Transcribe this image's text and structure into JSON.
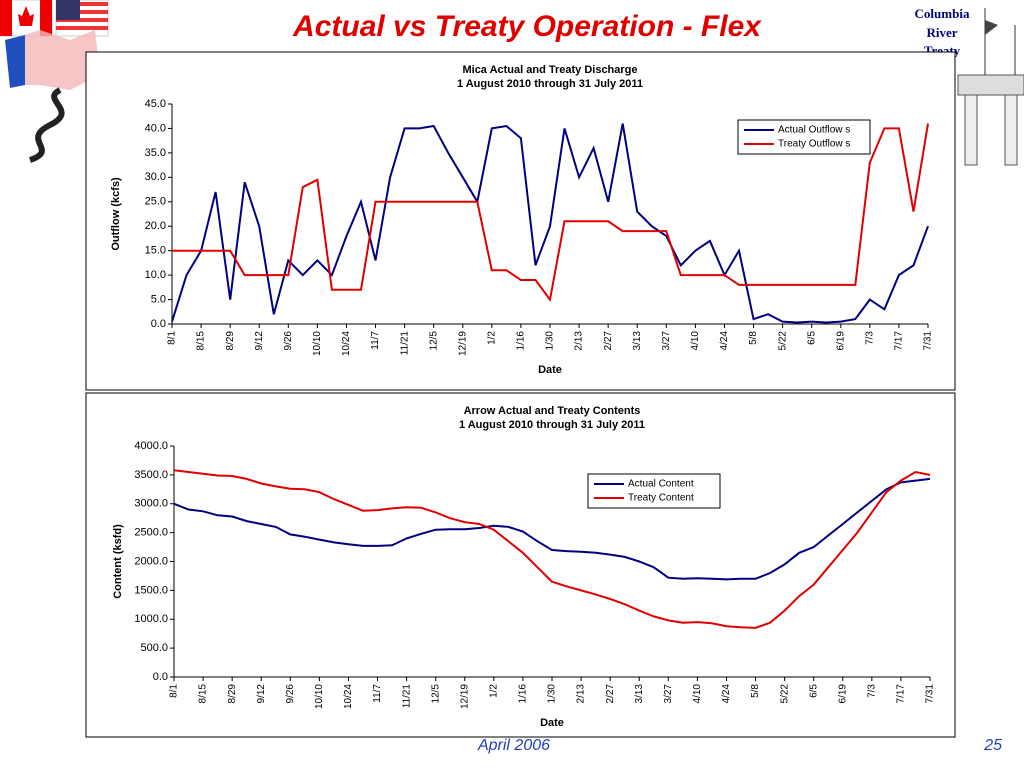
{
  "header": {
    "title": "Actual vs Treaty Operation - Flex",
    "logo_text": [
      "Columbia",
      "River",
      "Treaty"
    ]
  },
  "footer": {
    "date": "April 2006",
    "page": "25"
  },
  "chart_data": [
    {
      "type": "line",
      "title": "Mica Actual and Treaty Discharge",
      "subtitle": "1 August 2010 through 31 July 2011",
      "x_label": "Date",
      "y_label": "Outflow (kcfs)",
      "legend": "upper right",
      "categories": [
        "8/1",
        null,
        "8/15",
        null,
        "8/29",
        null,
        "9/12",
        null,
        "9/26",
        null,
        "10/10",
        null,
        "10/24",
        null,
        "11/7",
        null,
        "11/21",
        null,
        "12/5",
        null,
        "12/19",
        null,
        "1/2",
        null,
        "1/16",
        null,
        "1/30",
        null,
        "2/13",
        null,
        "2/27",
        null,
        "3/13",
        null,
        "3/27",
        null,
        "4/10",
        null,
        "4/24",
        null,
        "5/8",
        null,
        "5/22",
        null,
        "6/5",
        null,
        "6/19",
        null,
        "7/3",
        null,
        "7/17",
        null,
        "7/31"
      ],
      "ylim": [
        0,
        45
      ],
      "yticks": [
        {
          "value": 0,
          "label": "0.0"
        },
        {
          "value": 5,
          "label": "5.0"
        },
        {
          "value": 10,
          "label": "10.0"
        },
        {
          "value": 15,
          "label": "15.0"
        },
        {
          "value": 20,
          "label": "20.0"
        },
        {
          "value": 25,
          "label": "25.0"
        },
        {
          "value": 30,
          "label": "30.0"
        },
        {
          "value": 35,
          "label": "35.0"
        },
        {
          "value": 40,
          "label": "40.0"
        },
        {
          "value": 45,
          "label": "45.0"
        }
      ],
      "series": [
        {
          "name": "Actual Outflow s",
          "color": "#000080",
          "values": [
            0.5,
            10,
            15,
            27,
            5,
            29,
            20,
            2,
            13,
            10,
            13,
            10,
            18,
            25,
            13,
            30,
            40,
            40,
            40.5,
            35,
            30,
            25,
            40,
            40.5,
            38,
            12,
            20,
            40,
            30,
            36,
            25,
            41,
            23,
            20,
            18,
            12,
            15,
            17,
            10,
            15,
            1,
            2,
            0.5,
            0.3,
            0.5,
            0.3,
            0.5,
            1,
            5,
            3,
            10,
            12,
            20
          ]
        },
        {
          "name": "Treaty Outflow s",
          "color": "#e00000",
          "values": [
            15,
            15,
            15,
            15,
            15,
            10,
            10,
            10,
            10,
            28,
            29.5,
            7,
            7,
            7,
            25,
            25,
            25,
            25,
            25,
            25,
            25,
            25,
            11,
            11,
            9,
            9,
            5,
            21,
            21,
            21,
            21,
            19,
            19,
            19,
            19,
            10,
            10,
            10,
            10,
            8,
            8,
            8,
            8,
            8,
            8,
            8,
            8,
            8,
            33,
            40,
            40,
            23,
            41
          ]
        }
      ]
    },
    {
      "type": "line",
      "title": "Arrow Actual and Treaty Contents",
      "subtitle": "1 August 2010 through 31 July 2011",
      "x_label": "Date",
      "y_label": "Content (ksfd)",
      "legend": "upper center",
      "categories": [
        "8/1",
        null,
        "8/15",
        null,
        "8/29",
        null,
        "9/12",
        null,
        "9/26",
        null,
        "10/10",
        null,
        "10/24",
        null,
        "11/7",
        null,
        "11/21",
        null,
        "12/5",
        null,
        "12/19",
        null,
        "1/2",
        null,
        "1/16",
        null,
        "1/30",
        null,
        "2/13",
        null,
        "2/27",
        null,
        "3/13",
        null,
        "3/27",
        null,
        "4/10",
        null,
        "4/24",
        null,
        "5/8",
        null,
        "5/22",
        null,
        "6/5",
        null,
        "6/19",
        null,
        "7/3",
        null,
        "7/17",
        null,
        "7/31"
      ],
      "ylim": [
        0,
        4000
      ],
      "yticks": [
        {
          "value": 0,
          "label": "0.0"
        },
        {
          "value": 500,
          "label": "500.0"
        },
        {
          "value": 1000,
          "label": "1000.0"
        },
        {
          "value": 1500,
          "label": "1500.0"
        },
        {
          "value": 2000,
          "label": "2000.0"
        },
        {
          "value": 2500,
          "label": "2500.0"
        },
        {
          "value": 3000,
          "label": "3000.0"
        },
        {
          "value": 3500,
          "label": "3500.0"
        },
        {
          "value": 4000,
          "label": "4000.0"
        }
      ],
      "series": [
        {
          "name": "Actual Content",
          "color": "#000080",
          "values": [
            3000,
            2900,
            2870,
            2800,
            2780,
            2700,
            2650,
            2600,
            2470,
            2430,
            2380,
            2330,
            2300,
            2270,
            2270,
            2280,
            2400,
            2480,
            2550,
            2560,
            2560,
            2580,
            2620,
            2600,
            2520,
            2350,
            2200,
            2180,
            2170,
            2150,
            2120,
            2080,
            2000,
            1900,
            1720,
            1700,
            1710,
            1700,
            1690,
            1700,
            1700,
            1800,
            1950,
            2150,
            2250,
            2450,
            2650,
            2850,
            3050,
            3250,
            3370,
            3400,
            3430
          ]
        },
        {
          "name": "Treaty Content",
          "color": "#e00000",
          "values": [
            3580,
            3550,
            3520,
            3490,
            3480,
            3430,
            3350,
            3300,
            3260,
            3250,
            3200,
            3080,
            2980,
            2880,
            2890,
            2920,
            2940,
            2930,
            2850,
            2750,
            2680,
            2650,
            2550,
            2350,
            2150,
            1900,
            1650,
            1570,
            1500,
            1430,
            1350,
            1260,
            1150,
            1050,
            980,
            940,
            950,
            930,
            880,
            860,
            850,
            940,
            1150,
            1400,
            1600,
            1900,
            2200,
            2500,
            2850,
            3200,
            3400,
            3550,
            3500
          ]
        }
      ]
    }
  ]
}
